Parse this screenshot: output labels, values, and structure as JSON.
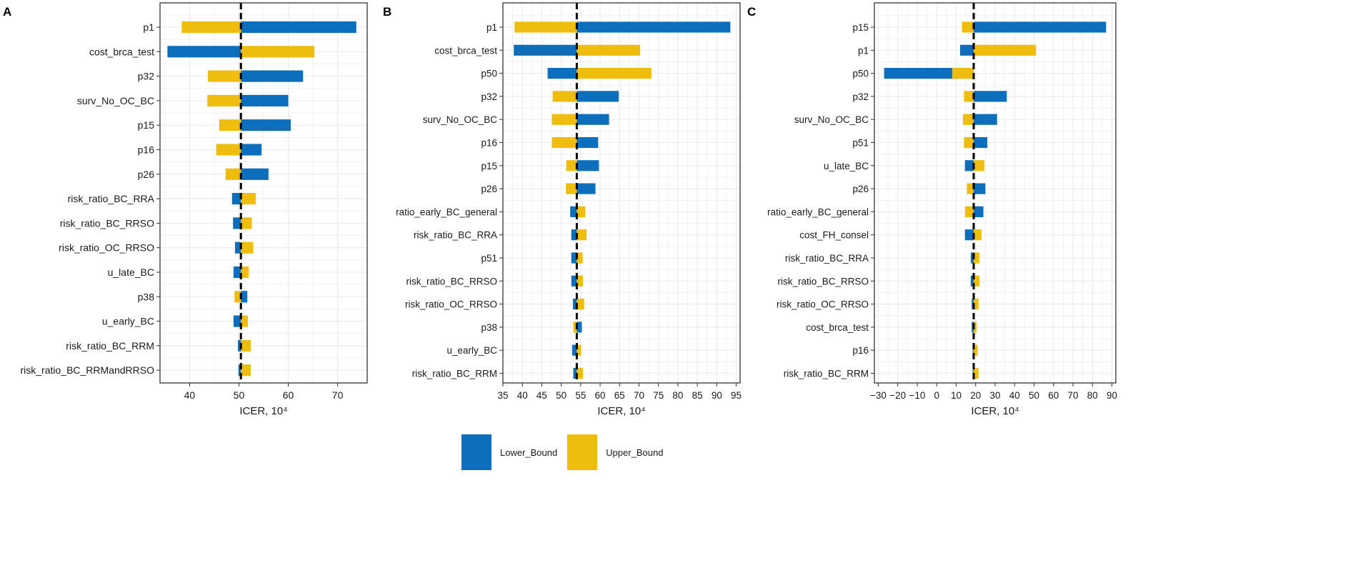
{
  "colors": {
    "lower": "#0c6fbd",
    "upper": "#efbd0d",
    "grid": "#ebebeb",
    "axis_line": "#333333"
  },
  "legend": {
    "lower_label": "Lower_Bound",
    "upper_label": "Upper_Bound"
  },
  "chart_data": [
    {
      "type": "bar",
      "subtype": "tornado",
      "panel_label": "A",
      "title": "",
      "xlabel": "ICER, 10⁴",
      "ylabel": "",
      "xlim": [
        34,
        76
      ],
      "xticks": [
        40,
        50,
        60,
        70
      ],
      "minor_xticks": [
        35,
        45,
        55,
        65,
        75
      ],
      "baseline": 50.4,
      "grid": true,
      "categories": [
        "p1",
        "cost_brca_test",
        "p32",
        "surv_No_OC_BC",
        "p15",
        "p16",
        "p26",
        "risk_ratio_BC_RRA",
        "risk_ratio_BC_RRSO",
        "risk_ratio_OC_RRSO",
        "u_late_BC",
        "p38",
        "u_early_BC",
        "risk_ratio_BC_RRM",
        "risk_ratio_BC_RRMandRRSO"
      ],
      "series": [
        {
          "name": "Lower_Bound",
          "values": [
            73.8,
            35.5,
            63.0,
            60.0,
            60.5,
            54.6,
            56.0,
            48.6,
            48.8,
            49.2,
            48.9,
            51.7,
            48.9,
            49.8,
            49.9
          ]
        },
        {
          "name": "Upper_Bound",
          "values": [
            38.4,
            65.3,
            43.7,
            43.6,
            46.0,
            45.4,
            47.3,
            53.4,
            52.6,
            52.9,
            52.0,
            49.1,
            51.8,
            52.4,
            52.4
          ]
        }
      ]
    },
    {
      "type": "bar",
      "subtype": "tornado",
      "panel_label": "B",
      "title": "",
      "xlabel": "ICER, 10⁴",
      "ylabel": "",
      "xlim": [
        35,
        96
      ],
      "xticks": [
        35,
        40,
        45,
        50,
        55,
        60,
        65,
        70,
        75,
        80,
        85,
        90,
        95
      ],
      "minor_xticks": [],
      "baseline": 54.0,
      "grid": true,
      "categories": [
        "p1",
        "cost_brca_test",
        "p50",
        "p32",
        "surv_No_OC_BC",
        "p16",
        "p15",
        "p26",
        "ratio_early_BC_general",
        "risk_ratio_BC_RRA",
        "p51",
        "risk_ratio_BC_RRSO",
        "risk_ratio_OC_RRSO",
        "p38",
        "u_early_BC",
        "risk_ratio_BC_RRM"
      ],
      "series": [
        {
          "name": "Lower_Bound",
          "values": [
            93.5,
            37.8,
            46.5,
            64.8,
            62.3,
            59.5,
            59.7,
            58.8,
            52.3,
            52.6,
            52.6,
            52.6,
            53.0,
            55.3,
            52.8,
            53.1
          ]
        },
        {
          "name": "Upper_Bound",
          "values": [
            38.0,
            70.3,
            73.2,
            47.8,
            47.6,
            47.6,
            51.3,
            51.2,
            56.2,
            56.5,
            55.5,
            55.6,
            55.9,
            53.1,
            55.1,
            55.6
          ]
        }
      ]
    },
    {
      "type": "bar",
      "subtype": "tornado",
      "panel_label": "C",
      "title": "",
      "xlabel": "ICER, 10⁴",
      "ylabel": "",
      "xlim": [
        -32,
        92
      ],
      "xticks": [
        -30,
        -20,
        -10,
        0,
        10,
        20,
        30,
        40,
        50,
        60,
        70,
        80,
        90
      ],
      "minor_xticks": [],
      "baseline": 19.0,
      "grid": true,
      "categories": [
        "p15",
        "p1",
        "p50",
        "p32",
        "surv_No_OC_BC",
        "p51",
        "u_late_BC",
        "p26",
        "ratio_early_BC_general",
        "cost_FH_consel",
        "risk_ratio_BC_RRA",
        "risk_ratio_BC_RRSO",
        "risk_ratio_OC_RRSO",
        "cost_brca_test",
        "p16",
        "risk_ratio_BC_RRM"
      ],
      "series": [
        {
          "name": "Lower_Bound",
          "values": [
            87.0,
            12.0,
            -27.0,
            36.0,
            31.0,
            26.0,
            14.5,
            25.0,
            24.0,
            14.5,
            17.5,
            17.5,
            18.0,
            18.0,
            18.5,
            18.5
          ]
        },
        {
          "name": "Upper_Bound",
          "values": [
            13.0,
            51.0,
            8.0,
            14.0,
            13.5,
            14.0,
            24.5,
            15.5,
            14.5,
            23.0,
            22.0,
            22.0,
            21.5,
            20.5,
            21.0,
            21.5
          ]
        }
      ]
    }
  ]
}
